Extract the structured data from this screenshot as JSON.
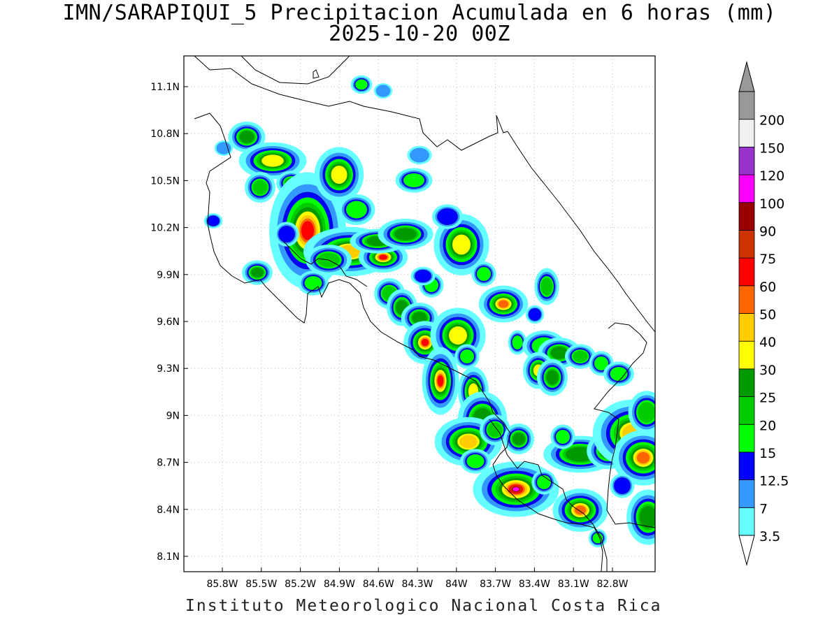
{
  "title": {
    "line1": "IMN/SARAPIQUI_5 Precipitacion Acumulada en 6 horas (mm)",
    "line2": "2025-10-20 00Z"
  },
  "footer": "Instituto Meteorologico Nacional Costa Rica",
  "axes": {
    "x_ticks": [
      "85.8W",
      "85.5W",
      "85.2W",
      "84.9W",
      "84.6W",
      "84.3W",
      "84W",
      "83.7W",
      "83.4W",
      "83.1W",
      "82.8W"
    ],
    "y_ticks": [
      "11.1N",
      "10.8N",
      "10.5N",
      "10.2N",
      "9.9N",
      "9.6N",
      "9.3N",
      "9N",
      "8.7N",
      "8.4N",
      "8.1N"
    ],
    "grid": "dotted"
  },
  "legend": {
    "bins": [
      {
        "label": "3.5",
        "color": "#66ffff"
      },
      {
        "label": "7",
        "color": "#3399ff"
      },
      {
        "label": "12.5",
        "color": "#0000ff"
      },
      {
        "label": "15",
        "color": "#00ff00"
      },
      {
        "label": "20",
        "color": "#00cc00"
      },
      {
        "label": "25",
        "color": "#009900"
      },
      {
        "label": "30",
        "color": "#ffff00"
      },
      {
        "label": "40",
        "color": "#ffcc00"
      },
      {
        "label": "50",
        "color": "#ff6600"
      },
      {
        "label": "60",
        "color": "#ff0000"
      },
      {
        "label": "75",
        "color": "#cc3300"
      },
      {
        "label": "90",
        "color": "#990000"
      },
      {
        "label": "100",
        "color": "#ff00ff"
      },
      {
        "label": "120",
        "color": "#9933cc"
      },
      {
        "label": "150",
        "color": "#f0f0f0"
      },
      {
        "label": "200",
        "color": "#999999"
      }
    ]
  }
}
